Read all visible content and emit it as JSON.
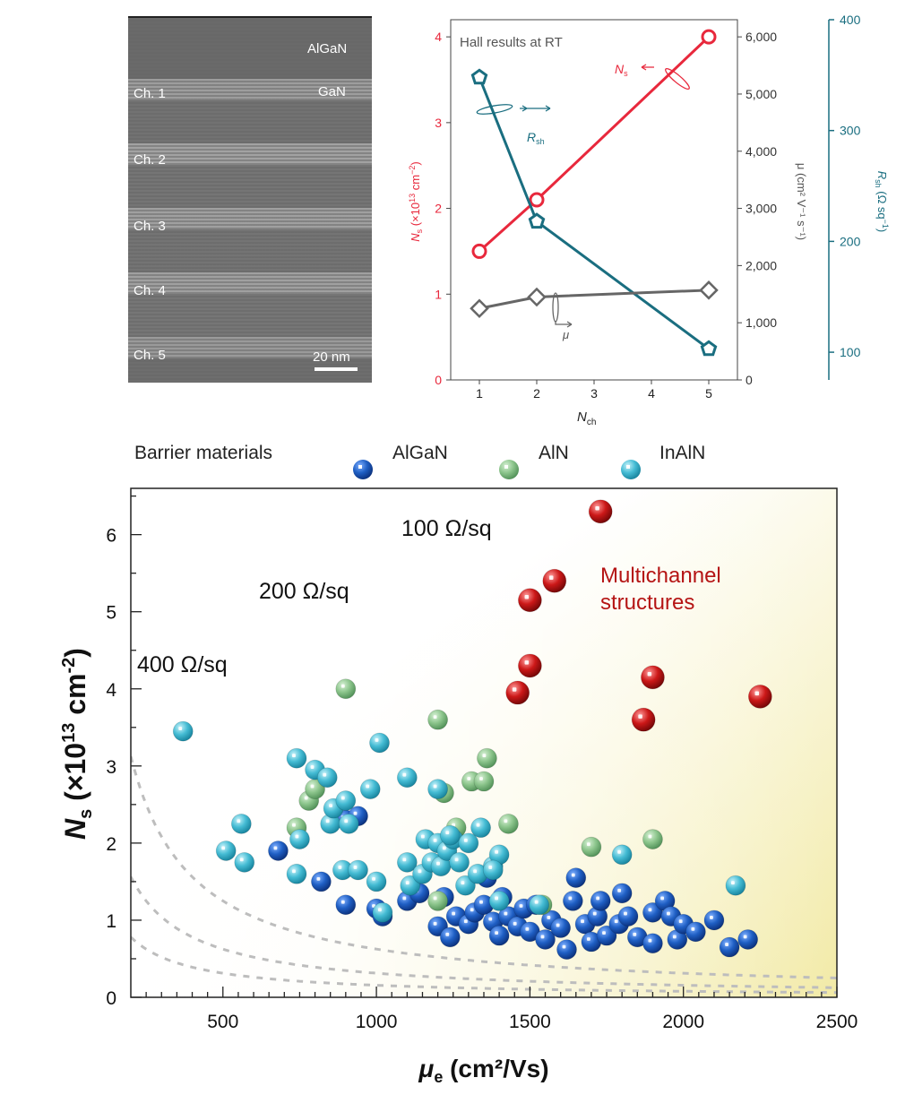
{
  "tem": {
    "labels": {
      "algan": "AlGaN",
      "gan": "GaN",
      "scale": "20 nm"
    },
    "channels": [
      "Ch. 1",
      "Ch. 2",
      "Ch. 3",
      "Ch. 4",
      "Ch. 5"
    ]
  },
  "chart_data": [
    {
      "type": "line",
      "title": "Hall results at RT",
      "xlabel": "N",
      "xlabel_sub": "ch",
      "x": [
        1,
        2,
        5
      ],
      "xticks": [
        "1",
        "2",
        "3",
        "4",
        "5"
      ],
      "xlim": [
        0.5,
        5.5
      ],
      "axes": {
        "left": {
          "label_main": "N",
          "label_sub": "s",
          "label_rest": " (×10",
          "label_sup": "13",
          "label_end": " cm",
          "label_sup2": "−2",
          "label_close": ")",
          "ylim": [
            0,
            4.2
          ],
          "ticks": [
            "0",
            "1",
            "2",
            "3",
            "4"
          ],
          "color": "#e8283c"
        },
        "mid": {
          "label": "μ (cm² V⁻¹ s⁻¹)",
          "ylim": [
            0,
            6300
          ],
          "ticks": [
            "0",
            "1,000",
            "2,000",
            "3,000",
            "4,000",
            "5,000",
            "6,000"
          ],
          "color": "#555555"
        },
        "right": {
          "label_main": "R",
          "label_sub": "sh",
          "label_rest": " (Ω sq",
          "label_sup": "−1",
          "label_close": ")",
          "ylim": [
            75,
            400
          ],
          "ticks": [
            "100",
            "200",
            "300",
            "400"
          ],
          "color": "#1a6e80"
        }
      },
      "series": [
        {
          "name": "N",
          "name_sub": "s",
          "axis": "left",
          "marker": "circle",
          "color": "#e8283c",
          "values": [
            1.5,
            2.1,
            4.0
          ]
        },
        {
          "name": "R",
          "name_sub": "sh",
          "axis": "right",
          "marker": "pentagon",
          "color": "#1a6e80",
          "values": [
            348,
            218,
            103
          ]
        },
        {
          "name": "μ",
          "axis": "mid",
          "marker": "diamond",
          "color": "#666666",
          "values": [
            1250,
            1450,
            1570
          ]
        }
      ]
    },
    {
      "type": "scatter",
      "xlabel_main": "μ",
      "xlabel_sub": "e",
      "xlabel_rest": " (cm²/Vs)",
      "ylabel_main": "N",
      "ylabel_sub": "s",
      "ylabel_rest": " (×10",
      "ylabel_sup": "13",
      "ylabel_end": " cm",
      "ylabel_sup2": "-2",
      "ylabel_close": ")",
      "xlim": [
        200,
        2500
      ],
      "ylim": [
        0,
        6.6
      ],
      "xticks": [
        500,
        1000,
        1500,
        2000,
        2500
      ],
      "yticks": [
        0,
        1,
        2,
        3,
        4,
        5,
        6
      ],
      "legend_title": "Barrier materials",
      "legend_position": "top",
      "annotation": "Multichannel\nstructures",
      "iso_lines": [
        {
          "label": "100 Ω/sq",
          "r": 100
        },
        {
          "label": "200 Ω/sq",
          "r": 200
        },
        {
          "label": "400 Ω/sq",
          "r": 400
        }
      ],
      "series": [
        {
          "name": "AlGaN",
          "color": "#1f5fc4",
          "points": [
            [
              680,
              1.9
            ],
            [
              820,
              1.5
            ],
            [
              900,
              1.2
            ],
            [
              900,
              2.3
            ],
            [
              940,
              2.35
            ],
            [
              1000,
              1.15
            ],
            [
              1020,
              1.05
            ],
            [
              1100,
              1.25
            ],
            [
              1140,
              1.35
            ],
            [
              1200,
              0.92
            ],
            [
              1220,
              1.3
            ],
            [
              1240,
              0.78
            ],
            [
              1260,
              1.05
            ],
            [
              1300,
              0.95
            ],
            [
              1320,
              1.1
            ],
            [
              1350,
              1.2
            ],
            [
              1380,
              0.98
            ],
            [
              1400,
              0.8
            ],
            [
              1410,
              1.3
            ],
            [
              1430,
              1.05
            ],
            [
              1460,
              0.92
            ],
            [
              1480,
              1.15
            ],
            [
              1500,
              0.85
            ],
            [
              1520,
              1.2
            ],
            [
              1550,
              0.75
            ],
            [
              1570,
              1.0
            ],
            [
              1600,
              0.9
            ],
            [
              1620,
              0.62
            ],
            [
              1640,
              1.25
            ],
            [
              1650,
              1.55
            ],
            [
              1680,
              0.95
            ],
            [
              1700,
              0.72
            ],
            [
              1720,
              1.05
            ],
            [
              1730,
              1.25
            ],
            [
              1750,
              0.8
            ],
            [
              1790,
              0.95
            ],
            [
              1800,
              1.35
            ],
            [
              1820,
              1.05
            ],
            [
              1850,
              0.78
            ],
            [
              1900,
              1.1
            ],
            [
              1900,
              0.7
            ],
            [
              1940,
              1.25
            ],
            [
              1960,
              1.05
            ],
            [
              1980,
              0.75
            ],
            [
              2000,
              0.95
            ],
            [
              2040,
              0.85
            ],
            [
              2100,
              1.0
            ],
            [
              2150,
              0.65
            ],
            [
              2210,
              0.75
            ],
            [
              1360,
              1.55
            ]
          ]
        },
        {
          "name": "AlN",
          "color": "#7fbf82",
          "points": [
            [
              740,
              2.2
            ],
            [
              780,
              2.55
            ],
            [
              800,
              2.7
            ],
            [
              900,
              4.0
            ],
            [
              1200,
              3.6
            ],
            [
              1220,
              2.65
            ],
            [
              1310,
              2.8
            ],
            [
              1350,
              2.8
            ],
            [
              1360,
              3.1
            ],
            [
              1430,
              2.25
            ],
            [
              1700,
              1.95
            ],
            [
              1900,
              2.05
            ],
            [
              1200,
              1.25
            ],
            [
              1260,
              2.2
            ],
            [
              1540,
              1.2
            ]
          ]
        },
        {
          "name": "InAlN",
          "color": "#3cb4cc",
          "points": [
            [
              370,
              3.45
            ],
            [
              510,
              1.9
            ],
            [
              560,
              2.25
            ],
            [
              570,
              1.75
            ],
            [
              740,
              1.6
            ],
            [
              740,
              3.1
            ],
            [
              750,
              2.05
            ],
            [
              800,
              2.95
            ],
            [
              840,
              2.85
            ],
            [
              850,
              2.25
            ],
            [
              860,
              2.45
            ],
            [
              890,
              1.65
            ],
            [
              900,
              2.55
            ],
            [
              910,
              2.25
            ],
            [
              940,
              1.65
            ],
            [
              980,
              2.7
            ],
            [
              1000,
              1.5
            ],
            [
              1010,
              3.3
            ],
            [
              1020,
              1.1
            ],
            [
              1100,
              2.85
            ],
            [
              1100,
              1.75
            ],
            [
              1110,
              1.45
            ],
            [
              1150,
              1.6
            ],
            [
              1160,
              2.05
            ],
            [
              1180,
              1.75
            ],
            [
              1200,
              2.0
            ],
            [
              1200,
              2.7
            ],
            [
              1210,
              1.7
            ],
            [
              1230,
              1.9
            ],
            [
              1250,
              2.05
            ],
            [
              1270,
              1.75
            ],
            [
              1290,
              1.45
            ],
            [
              1300,
              2.0
            ],
            [
              1330,
              1.6
            ],
            [
              1340,
              2.2
            ],
            [
              1380,
              1.7
            ],
            [
              1400,
              1.85
            ],
            [
              1400,
              1.25
            ],
            [
              1530,
              1.2
            ],
            [
              1800,
              1.85
            ],
            [
              2170,
              1.45
            ],
            [
              1240,
              2.1
            ],
            [
              1380,
              1.65
            ]
          ]
        },
        {
          "name": "Multichannel",
          "color": "#c81414",
          "points": [
            [
              1730,
              6.3
            ],
            [
              1580,
              5.4
            ],
            [
              1500,
              5.15
            ],
            [
              1500,
              4.3
            ],
            [
              1460,
              3.95
            ],
            [
              1900,
              4.15
            ],
            [
              1870,
              3.6
            ],
            [
              2250,
              3.9
            ]
          ]
        }
      ]
    }
  ]
}
